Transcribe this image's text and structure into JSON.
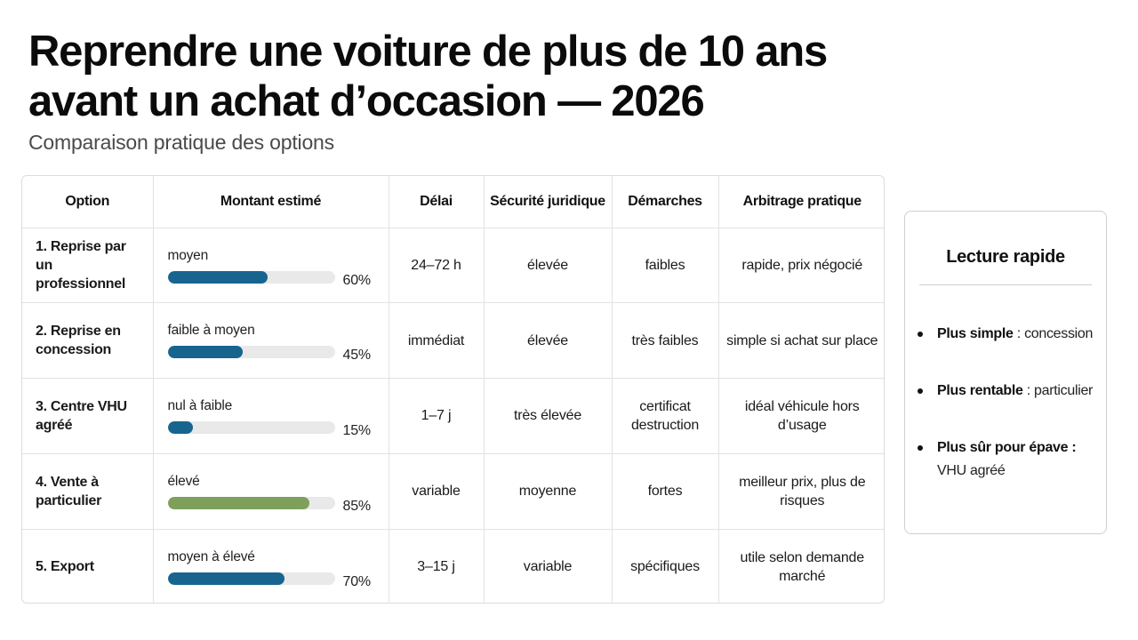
{
  "header": {
    "title": "Reprendre une voiture de plus de 10 ans avant un achat d’occasion — 2026",
    "subtitle": "Comparaison pratique des options"
  },
  "table": {
    "headers": [
      "Option",
      "Montant estimé",
      "Délai",
      "Sécurité juridique",
      "Démarches",
      "Arbitrage pratique"
    ],
    "rows": [
      {
        "option": "1. Reprise par un professionnel",
        "amount_label": "moyen",
        "amount_pct": 60,
        "amount_pct_text": "60%",
        "bar_color": "#17658f",
        "delay": "24–72 h",
        "legal": "élevée",
        "steps": "faibles",
        "tradeoff": "rapide, prix négocié"
      },
      {
        "option": "2. Reprise en concession",
        "amount_label": "faible à moyen",
        "amount_pct": 45,
        "amount_pct_text": "45%",
        "bar_color": "#17658f",
        "delay": "immédiat",
        "legal": "élevée",
        "steps": "très faibles",
        "tradeoff": "simple si achat sur place"
      },
      {
        "option": "3. Centre VHU agréé",
        "amount_label": "nul à faible",
        "amount_pct": 15,
        "amount_pct_text": "15%",
        "bar_color": "#17658f",
        "delay": "1–7 j",
        "legal": "très élevée",
        "steps": "certificat destruction",
        "tradeoff": "idéal véhicule hors d’usage"
      },
      {
        "option": "4. Vente à particulier",
        "amount_label": "élevé",
        "amount_pct": 85,
        "amount_pct_text": "85%",
        "bar_color": "#7ea05a",
        "delay": "variable",
        "legal": "moyenne",
        "steps": "fortes",
        "tradeoff": "meilleur prix, plus de risques"
      },
      {
        "option": "5. Export",
        "amount_label": "moyen à élevé",
        "amount_pct": 70,
        "amount_pct_text": "70%",
        "bar_color": "#17658f",
        "delay": "3–15 j",
        "legal": "variable",
        "steps": "spécifiques",
        "tradeoff": "utile selon demande marché"
      }
    ]
  },
  "quick_read": {
    "title": "Lecture rapide",
    "items": [
      {
        "label": "Plus simple",
        "sep": " : ",
        "value": "concession"
      },
      {
        "label": "Plus rentable",
        "sep": " : ",
        "value": "particulier"
      },
      {
        "label": "Plus sûr pour épave :",
        "sep": " ",
        "value": "VHU agréé"
      }
    ]
  }
}
